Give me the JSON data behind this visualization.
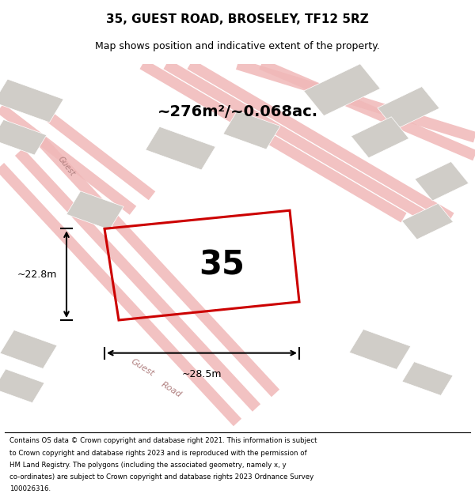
{
  "title": "35, GUEST ROAD, BROSELEY, TF12 5RZ",
  "subtitle": "Map shows position and indicative extent of the property.",
  "area_text": "~276m²/~0.068ac.",
  "property_number": "35",
  "dim_width": "~28.5m",
  "dim_height": "~22.8m",
  "footer_lines": [
    "Contains OS data © Crown copyright and database right 2021. This information is subject",
    "to Crown copyright and database rights 2023 and is reproduced with the permission of",
    "HM Land Registry. The polygons (including the associated geometry, namely x, y",
    "co-ordinates) are subject to Crown copyright and database rights 2023 Ordnance Survey",
    "100026316."
  ],
  "map_bg": "#f2f0ed",
  "road_color": "#f0b8b8",
  "building_color": "#d0cdc8",
  "highlight_color": "#cc0000"
}
